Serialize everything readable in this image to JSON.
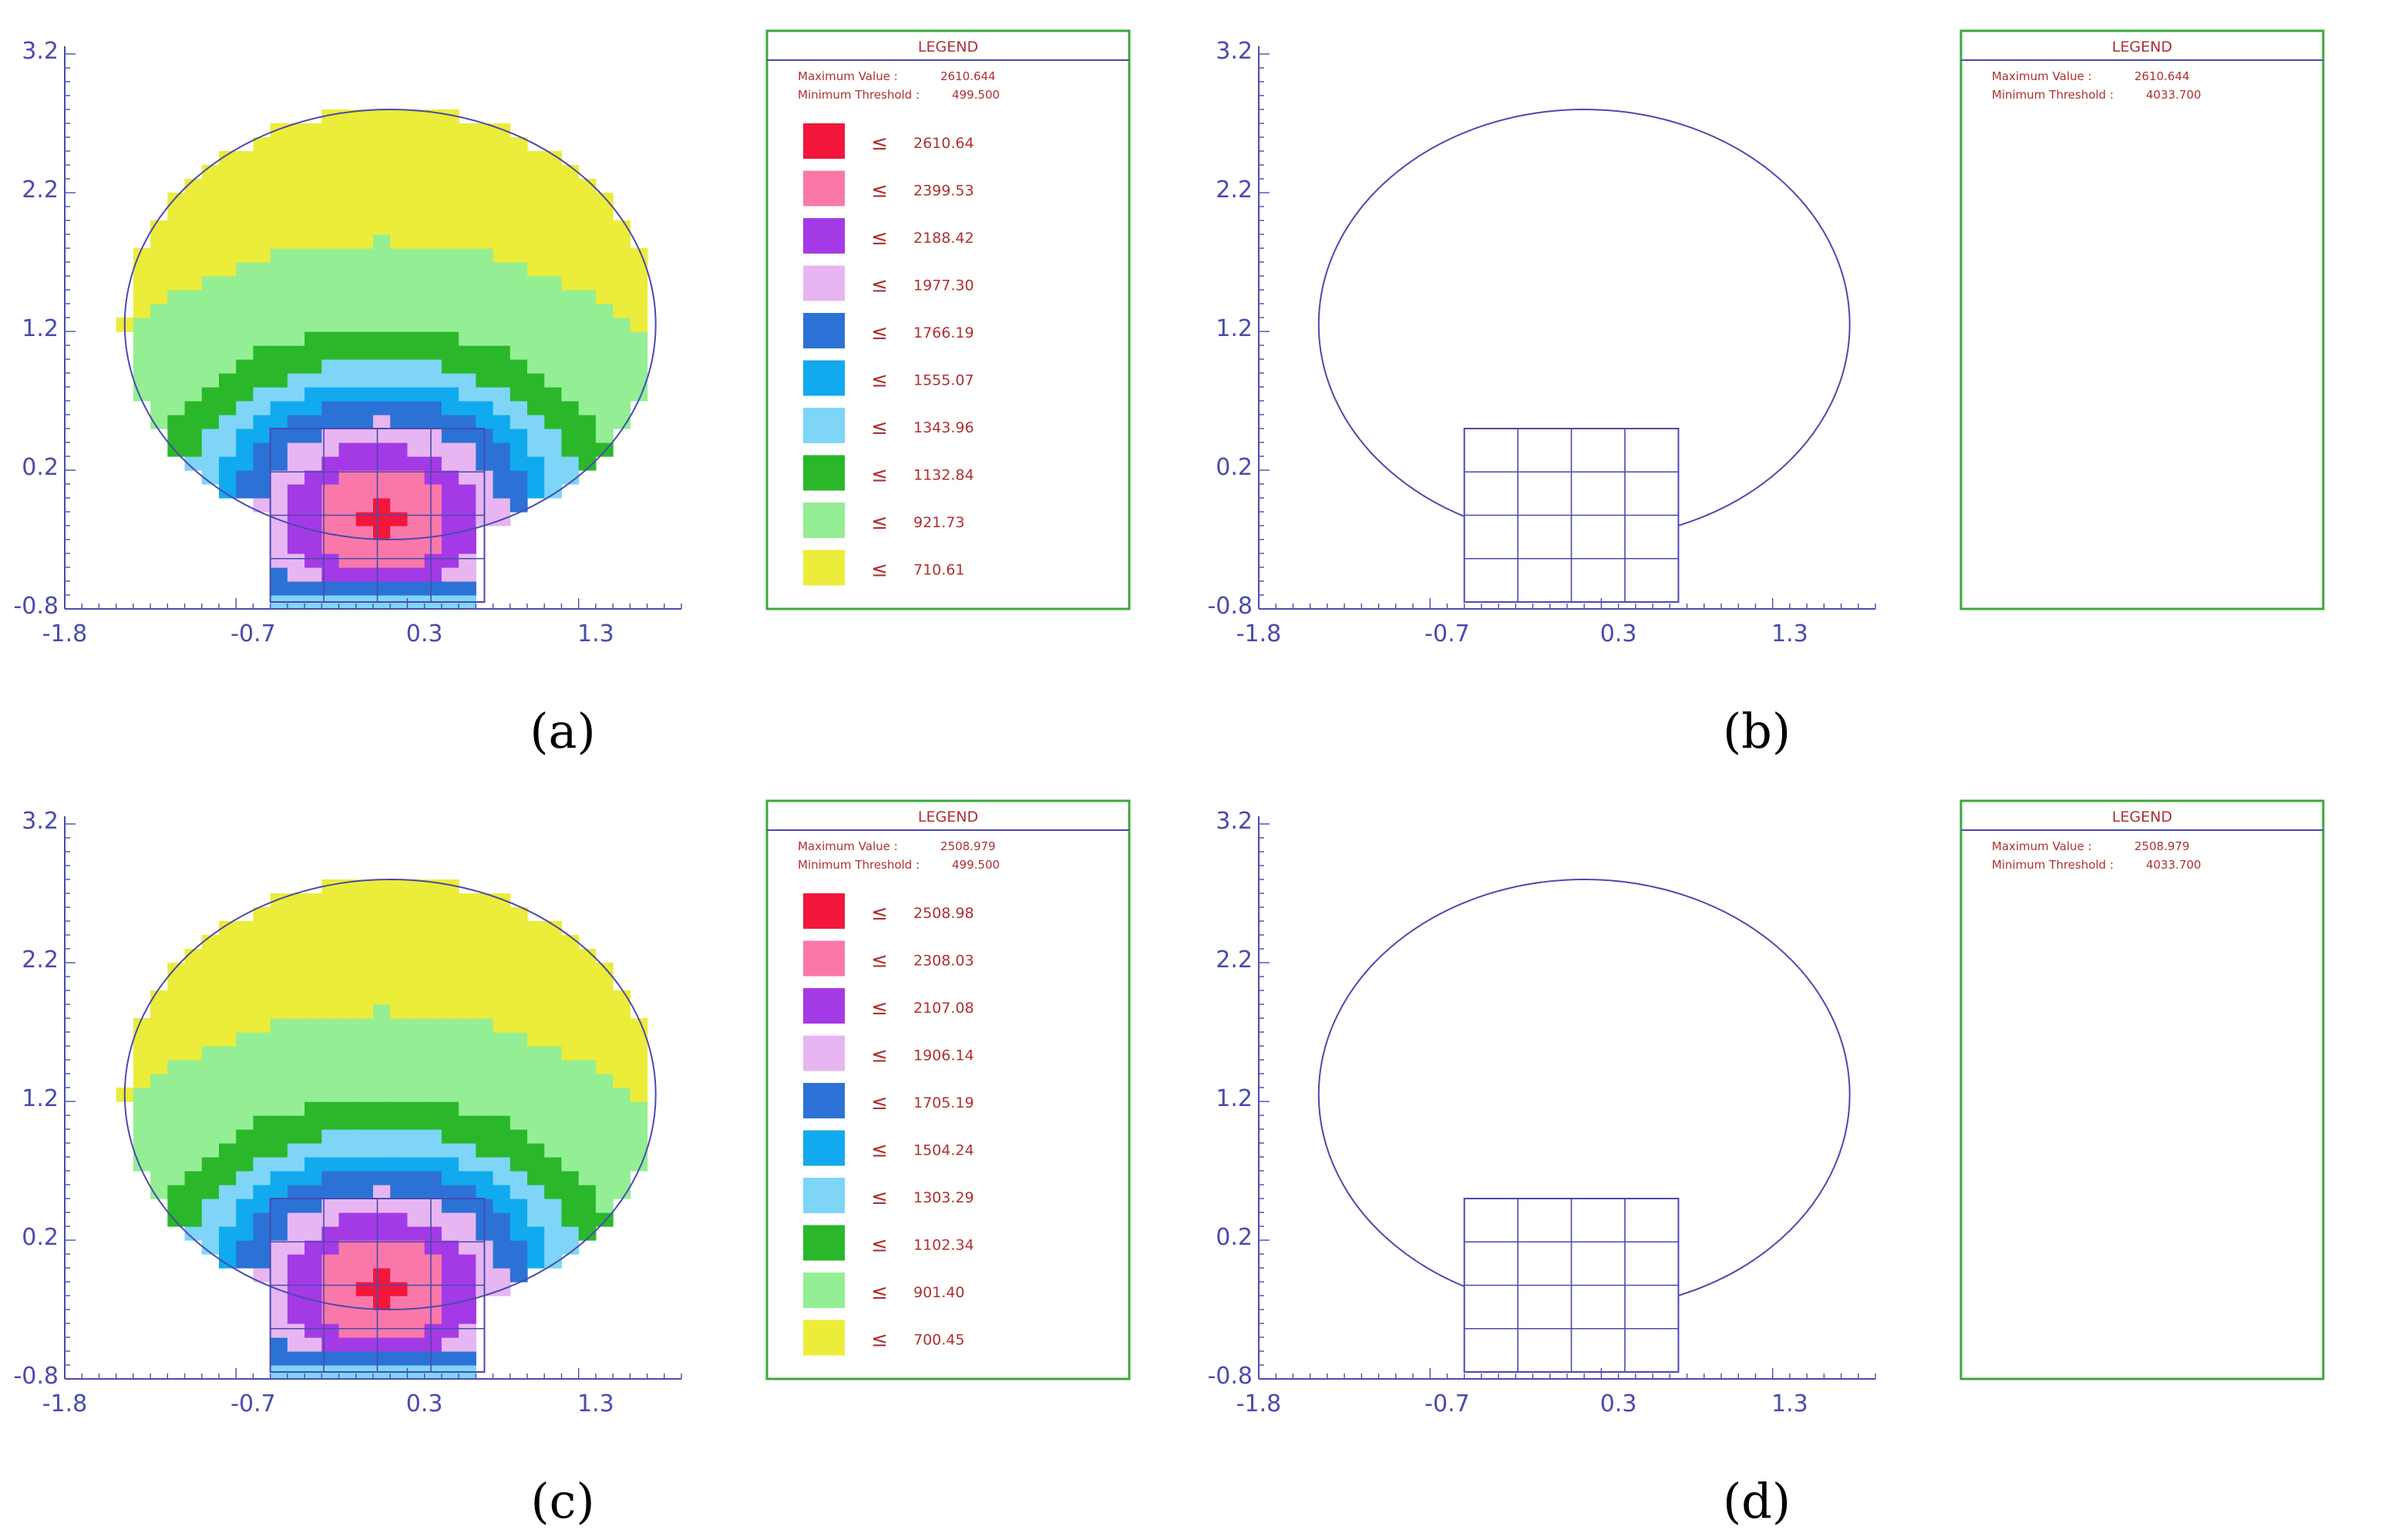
{
  "chart_data": [
    {
      "label": "(a)",
      "type": "heatmap",
      "legend": {
        "title": "LEGEND",
        "max_label": "Maximum Value :",
        "max_value": "2610.644",
        "min_label": "Minimum Threshold :",
        "min_value": "499.500",
        "entries": [
          {
            "color": "#f2163a",
            "label": "2610.64"
          },
          {
            "color": "#f978a9",
            "label": "2399.53"
          },
          {
            "color": "#a43ae5",
            "label": "2188.42"
          },
          {
            "color": "#e7b6f2",
            "label": "1977.30"
          },
          {
            "color": "#2c72d6",
            "label": "1766.19"
          },
          {
            "color": "#11aaee",
            "label": "1555.07"
          },
          {
            "color": "#7fd5f8",
            "label": "1343.96"
          },
          {
            "color": "#2ab82a",
            "label": "1132.84"
          },
          {
            "color": "#94ee94",
            "label": "921.73"
          },
          {
            "color": "#ecec3a",
            "label": "710.61"
          }
        ]
      },
      "xticks": [
        "-1.8",
        "-0.7",
        "0.3",
        "1.3"
      ],
      "yticks": [
        "-0.8",
        "0.2",
        "1.2",
        "2.2",
        "3.2"
      ],
      "xlim": [
        -1.8,
        1.8
      ],
      "ylim": [
        -0.8,
        3.2
      ],
      "contour_shown": true
    },
    {
      "label": "(b)",
      "type": "heatmap",
      "legend": {
        "title": "LEGEND",
        "max_label": "Maximum Value :",
        "max_value": "2610.644",
        "min_label": "Minimum Threshold :",
        "min_value": "4033.700",
        "entries": []
      },
      "xticks": [
        "-1.8",
        "-0.7",
        "0.3",
        "1.3"
      ],
      "yticks": [
        "-0.8",
        "0.2",
        "1.2",
        "2.2",
        "3.2"
      ],
      "xlim": [
        -1.8,
        1.8
      ],
      "ylim": [
        -0.8,
        3.2
      ],
      "contour_shown": false
    },
    {
      "label": "(c)",
      "type": "heatmap",
      "legend": {
        "title": "LEGEND",
        "max_label": "Maximum Value :",
        "max_value": "2508.979",
        "min_label": "Minimum Threshold :",
        "min_value": "499.500",
        "entries": [
          {
            "color": "#f2163a",
            "label": "2508.98"
          },
          {
            "color": "#f978a9",
            "label": "2308.03"
          },
          {
            "color": "#a43ae5",
            "label": "2107.08"
          },
          {
            "color": "#e7b6f2",
            "label": "1906.14"
          },
          {
            "color": "#2c72d6",
            "label": "1705.19"
          },
          {
            "color": "#11aaee",
            "label": "1504.24"
          },
          {
            "color": "#7fd5f8",
            "label": "1303.29"
          },
          {
            "color": "#2ab82a",
            "label": "1102.34"
          },
          {
            "color": "#94ee94",
            "label": "901.40"
          },
          {
            "color": "#ecec3a",
            "label": "700.45"
          }
        ]
      },
      "xticks": [
        "-1.8",
        "-0.7",
        "0.3",
        "1.3"
      ],
      "yticks": [
        "-0.8",
        "0.2",
        "1.2",
        "2.2",
        "3.2"
      ],
      "xlim": [
        -1.8,
        1.8
      ],
      "ylim": [
        -0.8,
        3.2
      ],
      "contour_shown": true
    },
    {
      "label": "(d)",
      "type": "heatmap",
      "legend": {
        "title": "LEGEND",
        "max_label": "Maximum Value :",
        "max_value": "2508.979",
        "min_label": "Minimum Threshold :",
        "min_value": "4033.700",
        "entries": []
      },
      "xticks": [
        "-1.8",
        "-0.7",
        "0.3",
        "1.3"
      ],
      "yticks": [
        "-0.8",
        "0.2",
        "1.2",
        "2.2",
        "3.2"
      ],
      "xlim": [
        -1.8,
        1.8
      ],
      "ylim": [
        -0.8,
        3.2
      ],
      "contour_shown": false
    }
  ],
  "colors": {
    "axis": "#4a4ab0",
    "legend_border": "#3aa83a",
    "legend_text": "#b03030"
  }
}
